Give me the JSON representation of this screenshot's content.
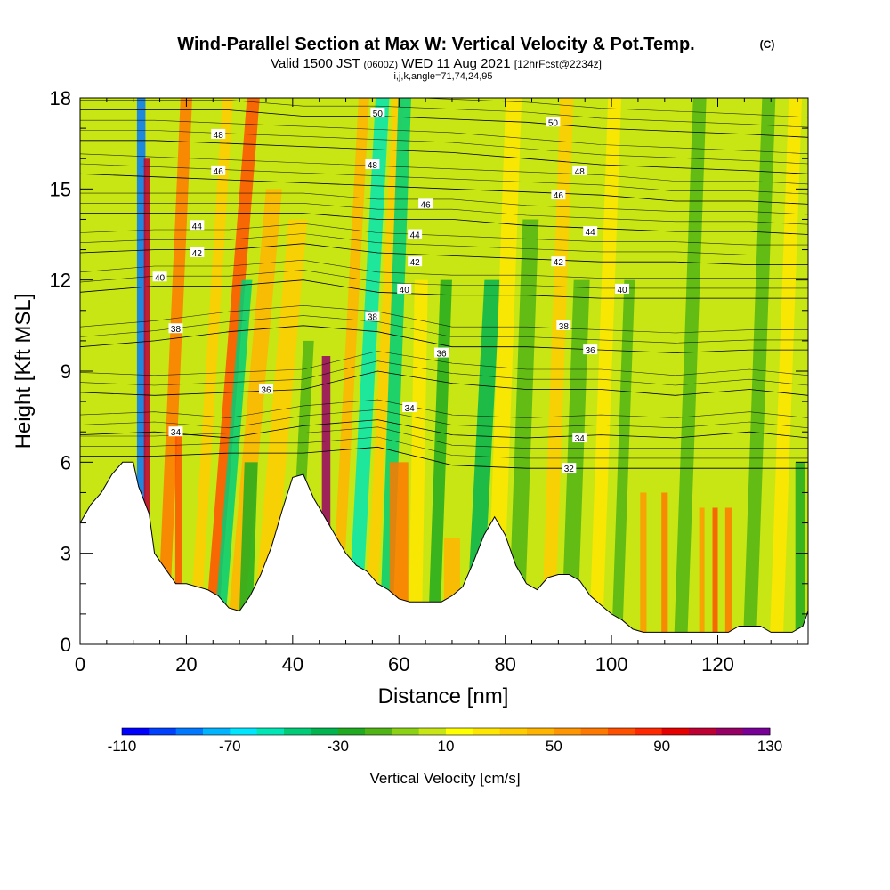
{
  "title": {
    "main": "Wind-Parallel Section at Max W: Vertical Velocity & Pot.Temp.",
    "copyright": "(C)",
    "valid_prefix": "Valid 1500 JST",
    "valid_z": "(0600Z)",
    "valid_date": "WED 11 Aug 2021",
    "forecast": "[12hrFcst@2234z]",
    "indices": "i,j,k,angle=71,74,24,95"
  },
  "chart_data": {
    "type": "heatmap",
    "xlabel": "Distance [nm]",
    "ylabel": "Height [Kft MSL]",
    "xlim": [
      0,
      137
    ],
    "ylim": [
      0,
      18
    ],
    "x_ticks": [
      "0",
      "20",
      "40",
      "60",
      "80",
      "100",
      "120"
    ],
    "x_tick_values": [
      0,
      20,
      40,
      60,
      80,
      100,
      120
    ],
    "y_ticks": [
      "0",
      "3",
      "6",
      "9",
      "12",
      "15",
      "18"
    ],
    "y_tick_values": [
      0,
      3,
      6,
      9,
      12,
      15,
      18
    ],
    "colorbar": {
      "title": "Vertical Velocity [cm/s]",
      "labels": [
        "-110",
        "-70",
        "-30",
        "10",
        "50",
        "90",
        "130"
      ],
      "min": -110,
      "max": 130,
      "step": 10,
      "colors": [
        "#0000ff",
        "#0040ff",
        "#0078ff",
        "#00b4ff",
        "#00e6ff",
        "#00e6b4",
        "#00cc78",
        "#00b450",
        "#20aa20",
        "#50b414",
        "#8cd214",
        "#c8e614",
        "#ffff00",
        "#ffe600",
        "#ffcc00",
        "#ffb400",
        "#ff9600",
        "#ff7800",
        "#ff5000",
        "#ff2800",
        "#e60000",
        "#be0032",
        "#960064",
        "#780096"
      ]
    },
    "terrain_kft": [
      [
        0,
        4.0
      ],
      [
        2,
        4.6
      ],
      [
        4,
        5.0
      ],
      [
        6,
        5.6
      ],
      [
        8,
        6.0
      ],
      [
        10,
        6.0
      ],
      [
        11,
        5.2
      ],
      [
        13,
        4.3
      ],
      [
        14,
        3.0
      ],
      [
        16,
        2.5
      ],
      [
        18,
        2.0
      ],
      [
        20,
        2.0
      ],
      [
        22,
        1.9
      ],
      [
        24,
        1.8
      ],
      [
        26,
        1.6
      ],
      [
        28,
        1.2
      ],
      [
        30,
        1.1
      ],
      [
        32,
        1.6
      ],
      [
        34,
        2.3
      ],
      [
        36,
        3.2
      ],
      [
        38,
        4.4
      ],
      [
        40,
        5.5
      ],
      [
        42,
        5.6
      ],
      [
        44,
        4.8
      ],
      [
        46,
        4.2
      ],
      [
        48,
        3.6
      ],
      [
        50,
        3.0
      ],
      [
        52,
        2.6
      ],
      [
        54,
        2.4
      ],
      [
        56,
        2.0
      ],
      [
        58,
        1.8
      ],
      [
        60,
        1.5
      ],
      [
        62,
        1.4
      ],
      [
        64,
        1.4
      ],
      [
        66,
        1.4
      ],
      [
        68,
        1.4
      ],
      [
        70,
        1.6
      ],
      [
        72,
        1.9
      ],
      [
        74,
        2.7
      ],
      [
        76,
        3.6
      ],
      [
        78,
        4.2
      ],
      [
        80,
        3.6
      ],
      [
        82,
        2.6
      ],
      [
        84,
        2.0
      ],
      [
        86,
        1.8
      ],
      [
        88,
        2.2
      ],
      [
        90,
        2.3
      ],
      [
        92,
        2.3
      ],
      [
        94,
        2.1
      ],
      [
        96,
        1.6
      ],
      [
        98,
        1.3
      ],
      [
        100,
        1.0
      ],
      [
        102,
        0.8
      ],
      [
        104,
        0.5
      ],
      [
        106,
        0.4
      ],
      [
        108,
        0.4
      ],
      [
        110,
        0.4
      ],
      [
        112,
        0.4
      ],
      [
        114,
        0.4
      ],
      [
        116,
        0.4
      ],
      [
        118,
        0.4
      ],
      [
        120,
        0.4
      ],
      [
        122,
        0.4
      ],
      [
        124,
        0.6
      ],
      [
        126,
        0.6
      ],
      [
        128,
        0.6
      ],
      [
        130,
        0.4
      ],
      [
        132,
        0.4
      ],
      [
        134,
        0.4
      ],
      [
        136,
        0.6
      ],
      [
        137,
        1.1
      ]
    ],
    "velocity_bands": [
      {
        "x": 11.5,
        "w": 1.6,
        "v": -90,
        "top": 18,
        "tilt": 0.0
      },
      {
        "x": 12.6,
        "w": 1.2,
        "v": 100,
        "top": 16,
        "tilt": 0.0
      },
      {
        "x": 15.5,
        "w": 2.2,
        "v": 60,
        "top": 18,
        "tilt": 0.25
      },
      {
        "x": 18.5,
        "w": 1.2,
        "v": 70,
        "top": 7,
        "tilt": 0.0
      },
      {
        "x": 21.5,
        "w": 2.0,
        "v": 30,
        "top": 18,
        "tilt": 0.35
      },
      {
        "x": 24.5,
        "w": 2.4,
        "v": 70,
        "top": 18,
        "tilt": 0.45
      },
      {
        "x": 26.0,
        "w": 2.0,
        "v": -50,
        "top": 12,
        "tilt": 0.45
      },
      {
        "x": 29.0,
        "w": 3.0,
        "v": 40,
        "top": 15,
        "tilt": 0.5
      },
      {
        "x": 31.0,
        "w": 2.5,
        "v": -30,
        "top": 6,
        "tilt": 0.2
      },
      {
        "x": 34.0,
        "w": 3.5,
        "v": 30,
        "top": 14,
        "tilt": 0.5
      },
      {
        "x": 40.0,
        "w": 2.0,
        "v": -20,
        "top": 10,
        "tilt": 0.3
      },
      {
        "x": 46.3,
        "w": 1.6,
        "v": 110,
        "top": 9.5,
        "tilt": 0.0
      },
      {
        "x": 48.0,
        "w": 2.0,
        "v": 40,
        "top": 18,
        "tilt": 0.3
      },
      {
        "x": 51.5,
        "w": 2.6,
        "v": -60,
        "top": 18,
        "tilt": 0.3
      },
      {
        "x": 54.5,
        "w": 2.0,
        "v": 30,
        "top": 18,
        "tilt": 0.3
      },
      {
        "x": 57.5,
        "w": 2.4,
        "v": -50,
        "top": 18,
        "tilt": 0.2
      },
      {
        "x": 60.0,
        "w": 3.5,
        "v": 60,
        "top": 6,
        "tilt": 0.0
      },
      {
        "x": 63.0,
        "w": 2.5,
        "v": 20,
        "top": 12,
        "tilt": 0.1
      },
      {
        "x": 66.5,
        "w": 2.2,
        "v": -30,
        "top": 12,
        "tilt": 0.2
      },
      {
        "x": 70.0,
        "w": 3.0,
        "v": 40,
        "top": 3.5,
        "tilt": 0.0
      },
      {
        "x": 74.0,
        "w": 3.0,
        "v": -40,
        "top": 12,
        "tilt": 0.3
      },
      {
        "x": 78.0,
        "w": 3.0,
        "v": 20,
        "top": 18,
        "tilt": 0.2
      },
      {
        "x": 82.0,
        "w": 3.0,
        "v": -20,
        "top": 14,
        "tilt": 0.2
      },
      {
        "x": 88.0,
        "w": 2.5,
        "v": 30,
        "top": 18,
        "tilt": 0.2
      },
      {
        "x": 92.0,
        "w": 3.0,
        "v": -20,
        "top": 12,
        "tilt": 0.2
      },
      {
        "x": 97.0,
        "w": 2.5,
        "v": 20,
        "top": 18,
        "tilt": 0.2
      },
      {
        "x": 101.0,
        "w": 2.0,
        "v": -20,
        "top": 12,
        "tilt": 0.2
      },
      {
        "x": 106.0,
        "w": 1.2,
        "v": 50,
        "top": 5,
        "tilt": 0.0
      },
      {
        "x": 110.0,
        "w": 1.2,
        "v": 60,
        "top": 5,
        "tilt": 0.0
      },
      {
        "x": 113.0,
        "w": 2.5,
        "v": -20,
        "top": 18,
        "tilt": 0.2
      },
      {
        "x": 117.0,
        "w": 1.0,
        "v": 50,
        "top": 4.5,
        "tilt": 0.0
      },
      {
        "x": 119.5,
        "w": 1.0,
        "v": 70,
        "top": 4.5,
        "tilt": 0.0
      },
      {
        "x": 122.0,
        "w": 1.2,
        "v": 60,
        "top": 4.5,
        "tilt": 0.0
      },
      {
        "x": 126.0,
        "w": 2.5,
        "v": -20,
        "top": 18,
        "tilt": 0.2
      },
      {
        "x": 131.0,
        "w": 2.5,
        "v": 20,
        "top": 18,
        "tilt": 0.2
      },
      {
        "x": 135.5,
        "w": 1.8,
        "v": -30,
        "top": 6,
        "tilt": 0.0
      }
    ],
    "theta_contours": [
      {
        "value": "32",
        "y": [
          6.2,
          6.2,
          6.3,
          6.3,
          6.5,
          5.9,
          5.8,
          5.8,
          5.8,
          5.8,
          5.8
        ]
      },
      {
        "value": "34",
        "y": [
          6.9,
          7.0,
          6.8,
          7.2,
          7.4,
          6.9,
          6.8,
          6.9,
          6.8,
          7.0,
          6.8
        ]
      },
      {
        "value": "36",
        "y": [
          8.3,
          8.2,
          8.3,
          8.4,
          9.0,
          8.6,
          8.4,
          8.4,
          8.2,
          8.4,
          8.2
        ]
      },
      {
        "value": "38",
        "y": [
          9.8,
          10.0,
          10.3,
          10.5,
          10.3,
          9.8,
          9.8,
          9.7,
          9.6,
          9.7,
          9.7
        ]
      },
      {
        "value": "40",
        "y": [
          11.6,
          11.8,
          11.8,
          12.0,
          11.6,
          11.5,
          11.5,
          11.4,
          11.4,
          11.4,
          11.4
        ]
      },
      {
        "value": "42",
        "y": [
          12.9,
          13.0,
          13.0,
          13.2,
          12.9,
          12.8,
          12.7,
          12.6,
          12.6,
          12.5,
          12.5
        ]
      },
      {
        "value": "44",
        "y": [
          14.2,
          14.2,
          14.2,
          14.2,
          14.0,
          14.0,
          13.8,
          13.7,
          13.6,
          13.6,
          13.5
        ]
      },
      {
        "value": "46",
        "y": [
          15.5,
          15.4,
          15.3,
          15.2,
          15.1,
          15.0,
          14.9,
          14.8,
          14.6,
          14.6,
          14.5
        ]
      },
      {
        "value": "48",
        "y": [
          16.6,
          16.6,
          16.5,
          16.4,
          16.3,
          16.2,
          16.0,
          15.8,
          15.7,
          15.6,
          15.5
        ]
      },
      {
        "value": "50",
        "y": [
          17.6,
          17.6,
          17.6,
          17.4,
          17.4,
          17.3,
          17.2,
          17.0,
          16.9,
          16.8,
          16.7
        ]
      }
    ],
    "contour_x": [
      0,
      14,
      28,
      42,
      56,
      70,
      84,
      98,
      112,
      126,
      137
    ],
    "contour_labels": [
      {
        "text": "32",
        "x": 92,
        "y": 5.8
      },
      {
        "text": "34",
        "x": 94,
        "y": 6.8
      },
      {
        "text": "34",
        "x": 62,
        "y": 7.8
      },
      {
        "text": "34",
        "x": 18,
        "y": 7.0
      },
      {
        "text": "36",
        "x": 35,
        "y": 8.4
      },
      {
        "text": "36",
        "x": 68,
        "y": 9.6
      },
      {
        "text": "36",
        "x": 96,
        "y": 9.7
      },
      {
        "text": "38",
        "x": 18,
        "y": 10.4
      },
      {
        "text": "38",
        "x": 55,
        "y": 10.8
      },
      {
        "text": "38",
        "x": 91,
        "y": 10.5
      },
      {
        "text": "40",
        "x": 15,
        "y": 12.1
      },
      {
        "text": "40",
        "x": 61,
        "y": 11.7
      },
      {
        "text": "40",
        "x": 102,
        "y": 11.7
      },
      {
        "text": "42",
        "x": 22,
        "y": 12.9
      },
      {
        "text": "42",
        "x": 63,
        "y": 12.6
      },
      {
        "text": "42",
        "x": 90,
        "y": 12.6
      },
      {
        "text": "44",
        "x": 22,
        "y": 13.8
      },
      {
        "text": "44",
        "x": 63,
        "y": 13.5
      },
      {
        "text": "44",
        "x": 96,
        "y": 13.6
      },
      {
        "text": "46",
        "x": 26,
        "y": 15.6
      },
      {
        "text": "46",
        "x": 65,
        "y": 14.5
      },
      {
        "text": "46",
        "x": 90,
        "y": 14.8
      },
      {
        "text": "48",
        "x": 26,
        "y": 16.8
      },
      {
        "text": "48",
        "x": 55,
        "y": 15.8
      },
      {
        "text": "48",
        "x": 94,
        "y": 15.6
      },
      {
        "text": "50",
        "x": 56,
        "y": 17.5
      },
      {
        "text": "50",
        "x": 89,
        "y": 17.2
      }
    ]
  }
}
